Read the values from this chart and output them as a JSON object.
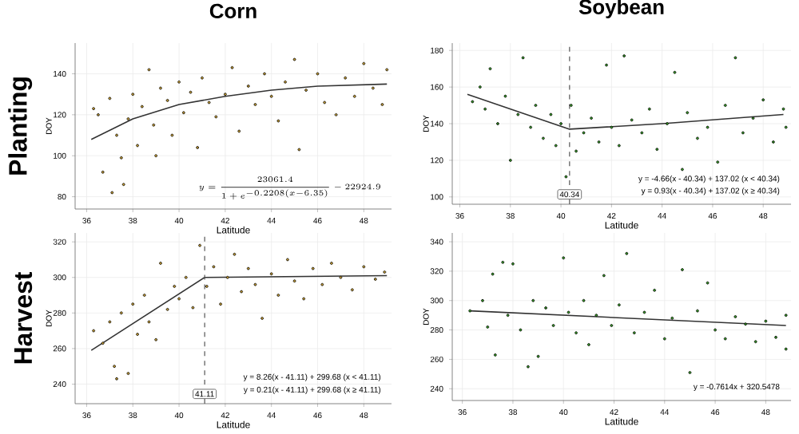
{
  "chart_data": [
    {
      "type": "scatter",
      "title": "Corn",
      "subtitle": "Planting",
      "xlabel": "Latitude",
      "ylabel": "DOY",
      "xlim": [
        35.5,
        49.2
      ],
      "ylim": [
        74,
        155
      ],
      "xticks": [
        36,
        38,
        40,
        42,
        44,
        46,
        48
      ],
      "yticks": [
        80,
        100,
        120,
        140
      ],
      "grid": true,
      "annotations": [
        "y = \\frac{23061.4}{1 + e^{-0.2208(x - 6.35)}} - 22924.9"
      ],
      "series": [
        {
          "color": "#c9a037",
          "marker": "circle",
          "x": [
            36.3,
            36.5,
            36.7,
            37,
            37.1,
            37.3,
            37.5,
            37.6,
            37.8,
            38,
            38.2,
            38.4,
            38.7,
            38.9,
            39,
            39.2,
            39.5,
            39.7,
            40,
            40.2,
            40.5,
            40.8,
            41,
            41.3,
            41.6,
            42,
            42.3,
            42.6,
            43,
            43.3,
            43.7,
            44,
            44.3,
            44.6,
            45,
            45.2,
            45.5,
            46,
            46.3,
            46.8,
            47.2,
            47.6,
            48,
            48.4,
            48.8,
            49
          ],
          "values": [
            123,
            120,
            92,
            128,
            82,
            110,
            99,
            86,
            118,
            130,
            105,
            124,
            142,
            115,
            100,
            133,
            127,
            110,
            136,
            121,
            131,
            104,
            138,
            126,
            119,
            130,
            143,
            112,
            134,
            125,
            140,
            129,
            117,
            136,
            147,
            103,
            132,
            140,
            126,
            120,
            138,
            129,
            145,
            133,
            125,
            142
          ]
        },
        {
          "type": "line",
          "color": "#333333",
          "marker": "none",
          "line_style": "solid",
          "x": [
            36.2,
            38,
            40,
            42,
            44,
            46,
            49
          ],
          "values": [
            108,
            118,
            125,
            129,
            132,
            134,
            135
          ]
        }
      ]
    },
    {
      "type": "scatter",
      "title": "Soybean",
      "xlabel": "Latitude",
      "ylabel": "DOY",
      "xlim": [
        35.7,
        49.1
      ],
      "ylim": [
        96,
        184
      ],
      "xticks": [
        36,
        38,
        40,
        42,
        44,
        46,
        48
      ],
      "yticks": [
        100,
        120,
        140,
        160,
        180
      ],
      "grid": true,
      "annotations": [
        "y = -4.66(x - 40.34) + 137.02 (x < 40.34)",
        "y = 0.93(x - 40.34) + 137.02 (x ≥ 40.34)"
      ],
      "ref_lines": [
        {
          "axis": "x",
          "value": 40.34,
          "label": "40.34",
          "line_style": "dashed",
          "color": "#555555"
        }
      ],
      "series": [
        {
          "color": "#3a9e2a",
          "marker": "circle",
          "x": [
            36.5,
            36.8,
            37,
            37.2,
            37.5,
            37.8,
            38,
            38.3,
            38.5,
            38.8,
            39,
            39.3,
            39.6,
            39.8,
            40,
            40.2,
            40.4,
            40.6,
            40.9,
            41.2,
            41.5,
            41.8,
            42,
            42.3,
            42.5,
            42.8,
            43.2,
            43.5,
            43.8,
            44.2,
            44.5,
            44.8,
            45,
            45.4,
            45.8,
            46.2,
            46.5,
            46.9,
            47.2,
            47.6,
            48,
            48.4,
            48.8,
            48.9
          ],
          "values": [
            152,
            160,
            148,
            170,
            140,
            155,
            120,
            145,
            176,
            138,
            150,
            132,
            145,
            128,
            140,
            111,
            150,
            125,
            135,
            143,
            130,
            172,
            138,
            128,
            177,
            142,
            135,
            148,
            126,
            140,
            168,
            115,
            146,
            132,
            138,
            119,
            150,
            176,
            135,
            143,
            153,
            130,
            148,
            138
          ]
        },
        {
          "type": "line",
          "color": "#333333",
          "marker": "none",
          "line_style": "solid",
          "x": [
            36.3,
            40.34,
            44,
            48.8
          ],
          "values": [
            156,
            137,
            140,
            145
          ]
        }
      ]
    },
    {
      "type": "scatter",
      "subtitle": "Harvest",
      "xlabel": "Latitude",
      "ylabel": "DOY",
      "xlim": [
        35.5,
        49.2
      ],
      "ylim": [
        229,
        325
      ],
      "xticks": [
        36,
        38,
        40,
        42,
        44,
        46,
        48
      ],
      "yticks": [
        240,
        260,
        280,
        300,
        320
      ],
      "grid": true,
      "annotations": [
        "y = 8.26(x - 41.11) + 299.68 (x < 41.11)",
        "y = 0.21(x - 41.11) + 299.68 (x ≥ 41.11)"
      ],
      "ref_lines": [
        {
          "axis": "x",
          "value": 41.11,
          "label": "41.11",
          "line_style": "dashed",
          "color": "#555555"
        }
      ],
      "series": [
        {
          "color": "#c9a037",
          "marker": "circle",
          "x": [
            36.3,
            36.7,
            37,
            37.2,
            37.3,
            37.5,
            37.8,
            38,
            38.2,
            38.5,
            38.7,
            39,
            39.2,
            39.5,
            39.8,
            40,
            40.3,
            40.6,
            40.9,
            41.2,
            41.5,
            41.8,
            42.1,
            42.4,
            42.7,
            43,
            43.3,
            43.6,
            44,
            44.3,
            44.7,
            45,
            45.4,
            45.8,
            46.2,
            46.6,
            47,
            47.5,
            48,
            48.5,
            48.9
          ],
          "values": [
            270,
            263,
            275,
            250,
            243,
            280,
            246,
            285,
            268,
            290,
            275,
            265,
            308,
            282,
            295,
            288,
            300,
            283,
            318,
            295,
            306,
            285,
            300,
            313,
            292,
            305,
            296,
            277,
            302,
            290,
            310,
            298,
            288,
            305,
            296,
            308,
            300,
            293,
            306,
            299,
            303
          ]
        },
        {
          "type": "line",
          "color": "#333333",
          "marker": "none",
          "line_style": "solid",
          "x": [
            36.2,
            41.11,
            49
          ],
          "values": [
            259,
            300,
            301
          ]
        }
      ]
    },
    {
      "type": "scatter",
      "xlabel": "Latitude",
      "ylabel": "DOY",
      "xlim": [
        35.6,
        49
      ],
      "ylim": [
        232,
        346
      ],
      "xticks": [
        36,
        38,
        40,
        42,
        44,
        46,
        48
      ],
      "yticks": [
        240,
        260,
        280,
        300,
        320,
        340
      ],
      "grid": true,
      "annotations": [
        "y = -0.7614x + 320.5478"
      ],
      "series": [
        {
          "color": "#3a9e2a",
          "marker": "circle",
          "x": [
            36.3,
            36.8,
            37,
            37.2,
            37.3,
            37.6,
            37.8,
            38,
            38.3,
            38.6,
            38.8,
            39,
            39.3,
            39.6,
            40,
            40.2,
            40.5,
            40.8,
            41,
            41.3,
            41.6,
            41.9,
            42.2,
            42.5,
            42.8,
            43.2,
            43.6,
            44,
            44.3,
            44.7,
            45,
            45.3,
            45.7,
            46,
            46.4,
            46.8,
            47.2,
            47.6,
            48,
            48.4,
            48.8,
            48.8
          ],
          "values": [
            293,
            300,
            282,
            318,
            263,
            326,
            290,
            325,
            280,
            255,
            300,
            262,
            295,
            283,
            329,
            292,
            278,
            300,
            270,
            290,
            317,
            283,
            297,
            332,
            278,
            292,
            307,
            274,
            288,
            321,
            251,
            293,
            312,
            280,
            274,
            289,
            284,
            272,
            286,
            275,
            267,
            290
          ]
        },
        {
          "type": "line",
          "color": "#333333",
          "marker": "none",
          "line_style": "solid",
          "x": [
            36.3,
            48.8
          ],
          "values": [
            293,
            283
          ]
        }
      ]
    }
  ]
}
